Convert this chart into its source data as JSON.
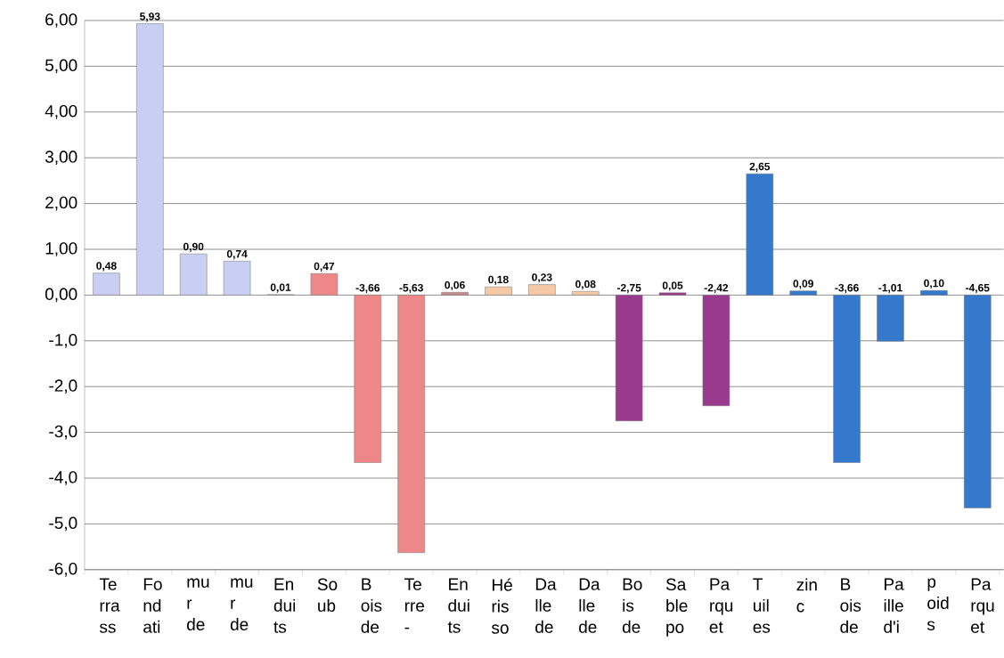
{
  "chart_data": {
    "type": "bar",
    "categories": [
      "Te rra ss",
      "Fo nd ati",
      "mu r de",
      "mu r de",
      "En dui ts",
      "So ub",
      "B ois de",
      "Te rre -",
      "En dui ts",
      "Hé ris so",
      "Da lle de",
      "Da lle de",
      "Bo is de",
      "Sa ble po",
      "Pa rqu et",
      "T uil es",
      "zin c",
      "B ois de",
      "Pa ille d'i",
      "p oid s",
      "Pa rqu et"
    ],
    "values": [
      0.48,
      5.93,
      0.9,
      0.74,
      0.01,
      0.47,
      -3.66,
      -5.63,
      0.06,
      0.18,
      0.23,
      0.08,
      -2.75,
      0.05,
      -2.42,
      2.65,
      0.09,
      -3.66,
      -1.01,
      0.1,
      -4.65
    ],
    "value_labels": [
      "0,48",
      "5,93",
      "0,90",
      "0,74",
      "0,01",
      "0,47",
      "-3,66",
      "-5,63",
      "0,06",
      "0,18",
      "0,23",
      "0,08",
      "-2,75",
      "0,05",
      "-2,42",
      "2,65",
      "0,09",
      "-3,66",
      "-1,01",
      "0,10",
      "-4,65"
    ],
    "colors": [
      "#c8cff2",
      "#c8cff2",
      "#c8cff2",
      "#c8cff2",
      "#c8cff2",
      "#ee8888",
      "#ee8888",
      "#ee8888",
      "#c98a8a",
      "#f5c9a5",
      "#f5c9a5",
      "#f5c9a5",
      "#9a3a8e",
      "#9a3a8e",
      "#9a3a8e",
      "#3479cc",
      "#3479cc",
      "#3479cc",
      "#3479cc",
      "#3479cc",
      "#3479cc"
    ],
    "ylim": [
      -6,
      6
    ],
    "yticks": [
      {
        "value": 6,
        "label": "6,00"
      },
      {
        "value": 5,
        "label": "5,00"
      },
      {
        "value": 4,
        "label": "4,00"
      },
      {
        "value": 3,
        "label": "3,00"
      },
      {
        "value": 2,
        "label": "2,00"
      },
      {
        "value": 1,
        "label": "1,00"
      },
      {
        "value": 0,
        "label": "0,00"
      },
      {
        "value": -1,
        "label": "-1,0"
      },
      {
        "value": -2,
        "label": "-2,0"
      },
      {
        "value": -3,
        "label": "-3,0"
      },
      {
        "value": -4,
        "label": "-4,0"
      },
      {
        "value": -5,
        "label": "-5,0"
      },
      {
        "value": -6,
        "label": "-6,0"
      }
    ],
    "grid": "y"
  }
}
